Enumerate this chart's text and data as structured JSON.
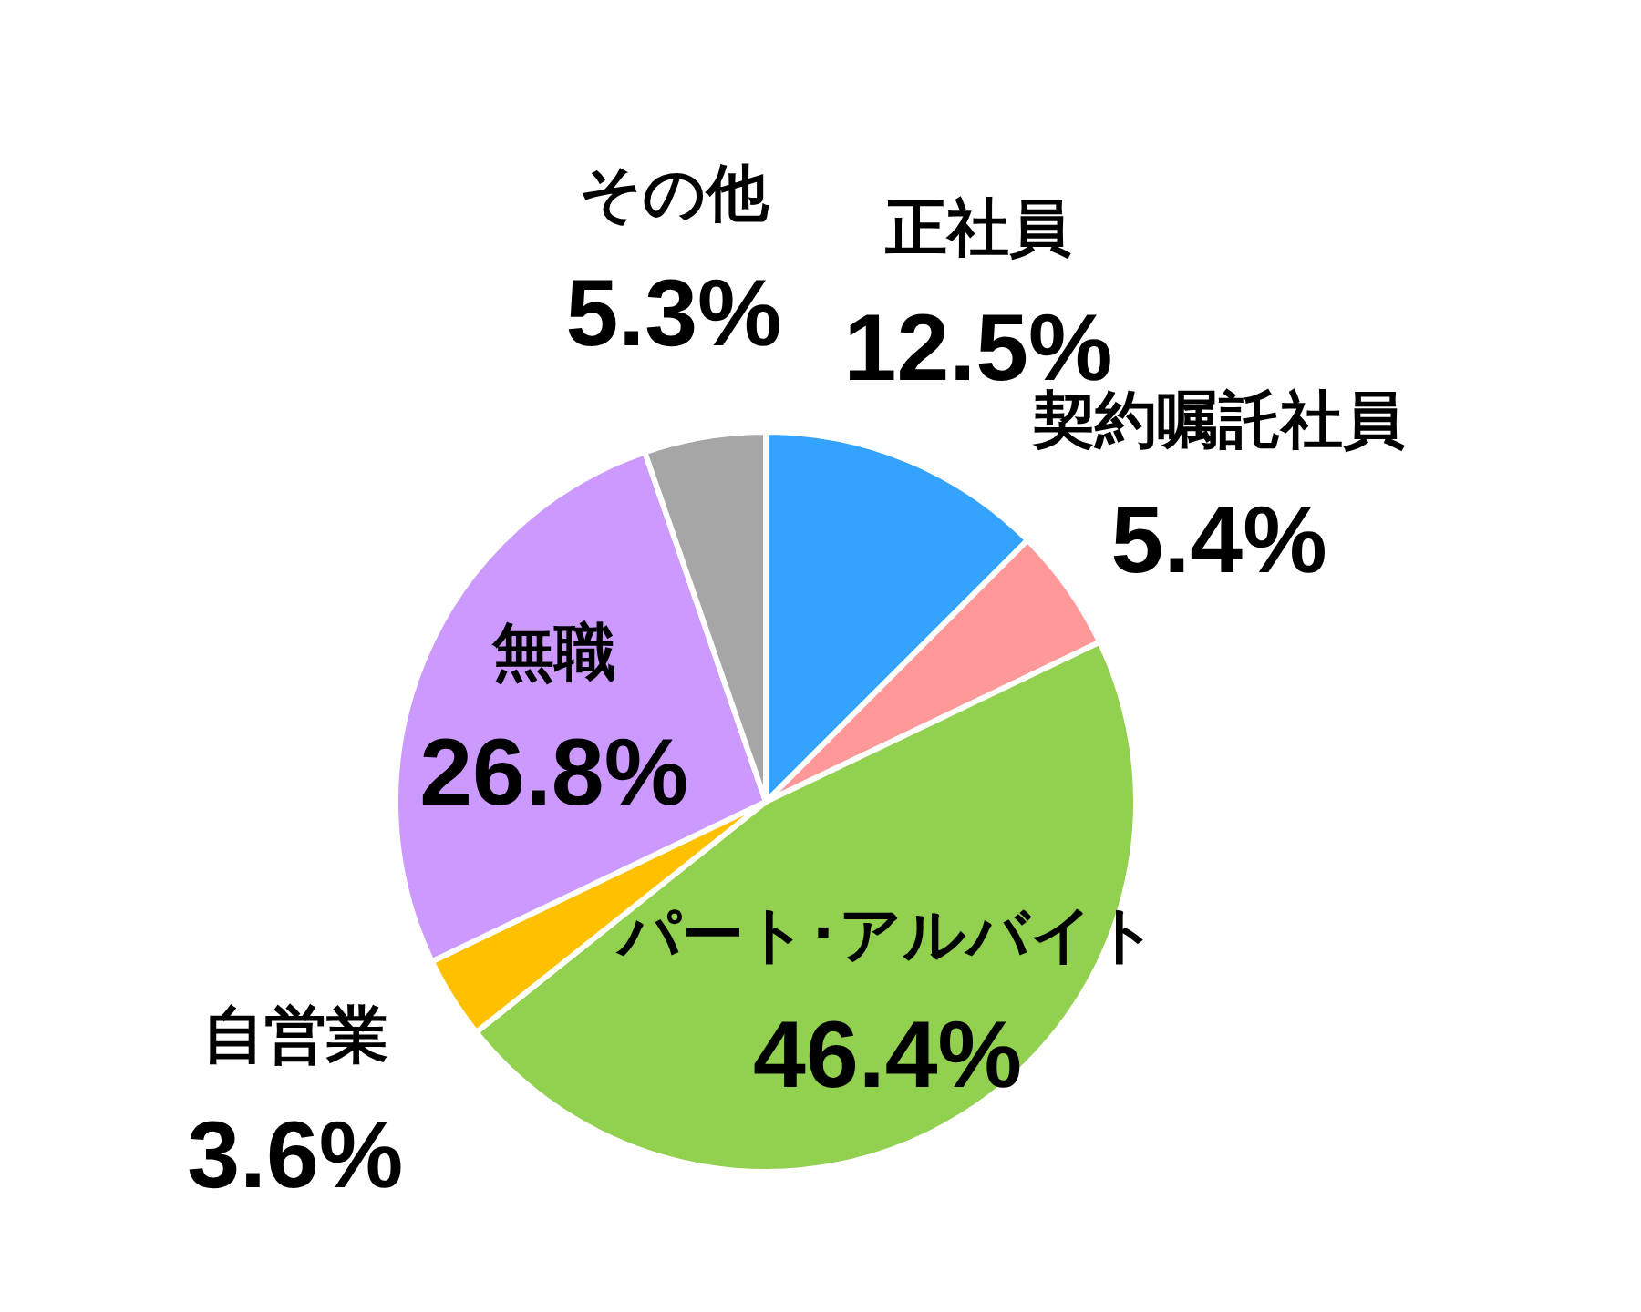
{
  "chart_data": {
    "type": "pie",
    "categories": [
      "正社員",
      "契約嘱託社員",
      "パート･アルバイト",
      "自営業",
      "無職",
      "その他"
    ],
    "values": [
      12.5,
      5.4,
      46.4,
      3.6,
      26.8,
      5.3
    ],
    "colors": [
      "#33a3ff",
      "#ff9999",
      "#92d050",
      "#ffc000",
      "#cc99ff",
      "#a6a6a6"
    ],
    "value_labels": [
      "12.5%",
      "5.4%",
      "46.4%",
      "3.6%",
      "26.8%",
      "5.3%"
    ]
  }
}
